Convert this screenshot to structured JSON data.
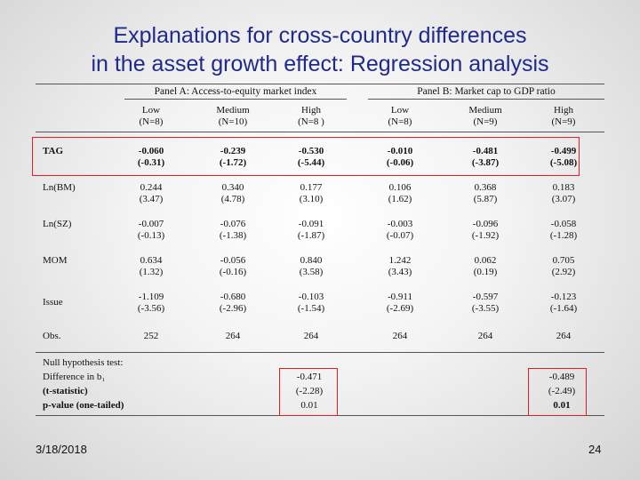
{
  "title": {
    "line1": "Explanations for cross-country differences",
    "line2": "in the asset growth effect: Regression analysis"
  },
  "panels": {
    "a": "Panel A: Access-to-equity market index",
    "b": "Panel B: Market cap to GDP ratio"
  },
  "columns": [
    {
      "label": "Low",
      "n": "(N=8)"
    },
    {
      "label": "Medium",
      "n": "(N=10)"
    },
    {
      "label": "High",
      "n": "(N=8 )"
    },
    {
      "label": "Low",
      "n": "(N=8)"
    },
    {
      "label": "Medium",
      "n": "(N=9)"
    },
    {
      "label": "High",
      "n": "(N=9)"
    }
  ],
  "rows": [
    {
      "label": "TAG",
      "coef": [
        "-0.060",
        "-0.239",
        "-0.530",
        "-0.010",
        "-0.481",
        "-0.499"
      ],
      "t": [
        "(-0.31)",
        "(-1.72)",
        "(-5.44)",
        "(-0.06)",
        "(-3.87)",
        "(-5.08)"
      ]
    },
    {
      "label": "Ln(BM)",
      "coef": [
        "0.244",
        "0.340",
        "0.177",
        "0.106",
        "0.368",
        "0.183"
      ],
      "t": [
        "(3.47)",
        "(4.78)",
        "(3.10)",
        "(1.62)",
        "(5.87)",
        "(3.07)"
      ]
    },
    {
      "label": "Ln(SZ)",
      "coef": [
        "-0.007",
        "-0.076",
        "-0.091",
        "-0.003",
        "-0.096",
        "-0.058"
      ],
      "t": [
        "(-0.13)",
        "(-1.38)",
        "(-1.87)",
        "(-0.07)",
        "(-1.92)",
        "(-1.28)"
      ]
    },
    {
      "label": "MOM",
      "coef": [
        "0.634",
        "-0.056",
        "0.840",
        "1.242",
        "0.062",
        "0.705"
      ],
      "t": [
        "(1.32)",
        "(-0.16)",
        "(3.58)",
        "(3.43)",
        "(0.19)",
        "(2.92)"
      ]
    },
    {
      "label": "Issue",
      "coef": [
        "-1.109",
        "-0.680",
        "-0.103",
        "-0.911",
        "-0.597",
        "-0.123"
      ],
      "t": [
        "(-3.56)",
        "(-2.96)",
        "(-1.54)",
        "(-2.69)",
        "(-3.55)",
        "(-1.64)"
      ]
    }
  ],
  "obs": {
    "label": "Obs.",
    "values": [
      "252",
      "264",
      "264",
      "264",
      "264",
      "264"
    ]
  },
  "null_test": {
    "header": "Null hypothesis test:",
    "diff_label": "Difference in b₁",
    "t_label": "(t-statistic)",
    "p_label": "p-value (one-tailed)",
    "panel_a": {
      "diff": "-0.471",
      "t": "(-2.28)",
      "p": "0.01"
    },
    "panel_b": {
      "diff": "-0.489",
      "t": "(-2.49)",
      "p": "0.01"
    }
  },
  "footer": {
    "date": "3/18/2018",
    "page": "24"
  },
  "colors": {
    "title": "#1f2a8c",
    "highlight": "#e02020"
  }
}
